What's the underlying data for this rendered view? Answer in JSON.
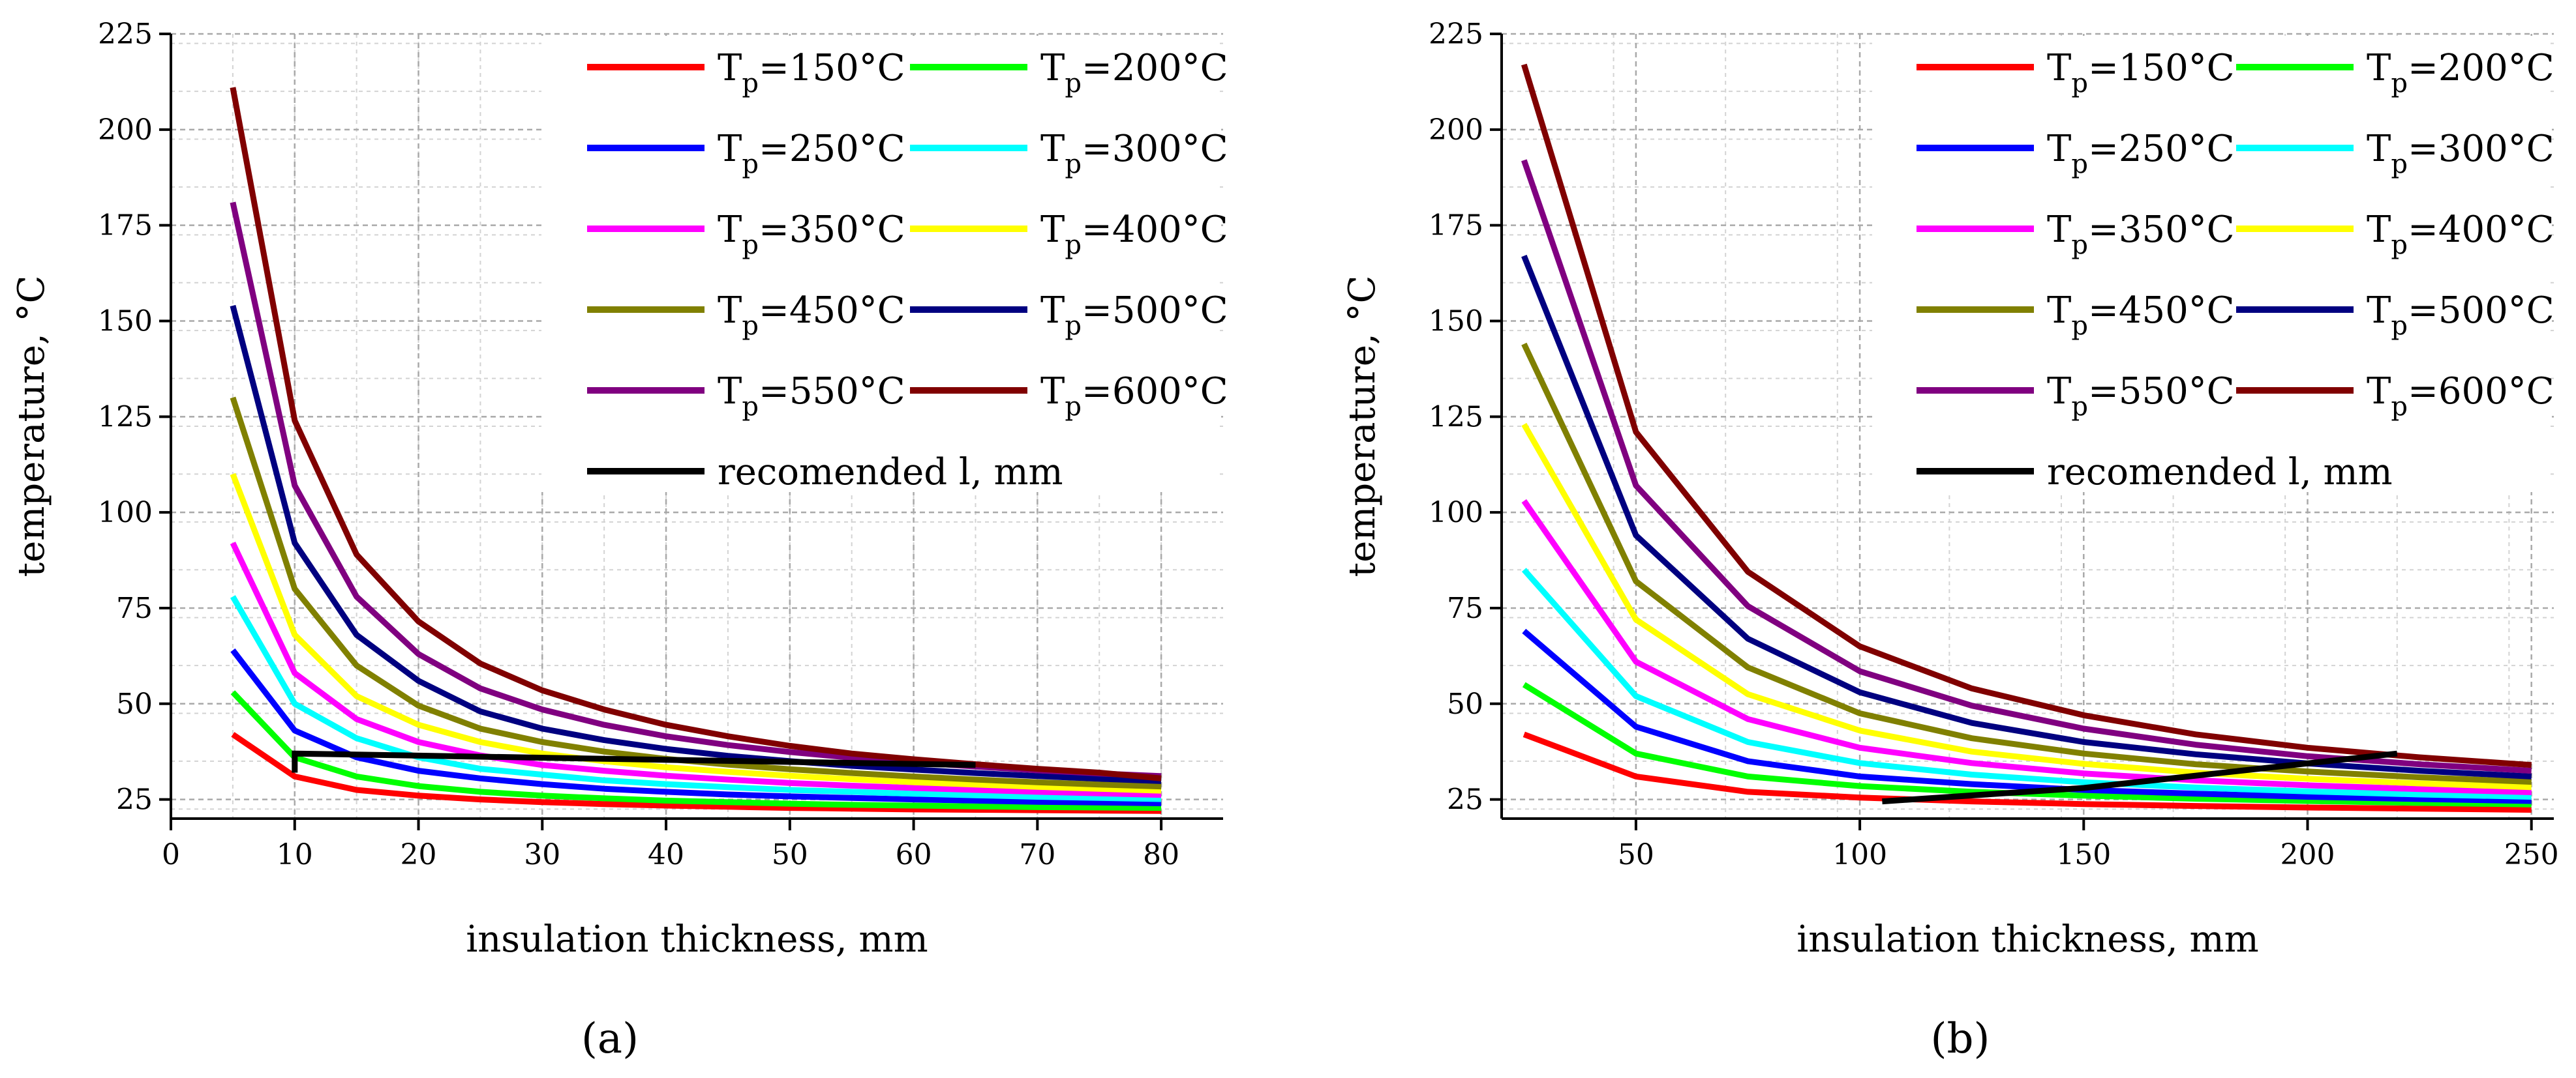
{
  "chart_data": [
    {
      "type": "line",
      "panel_label": "(a)",
      "xlabel": "insulation thickness, mm",
      "ylabel": "temperature, °C",
      "xlim": [
        0,
        85
      ],
      "ylim": [
        20,
        225
      ],
      "xticks": [
        0,
        10,
        20,
        30,
        40,
        50,
        60,
        70,
        80
      ],
      "yticks": [
        25,
        50,
        75,
        100,
        125,
        150,
        175,
        200,
        225
      ],
      "x": [
        5,
        10,
        15,
        20,
        25,
        30,
        35,
        40,
        45,
        50,
        55,
        60,
        65,
        70,
        75,
        80
      ],
      "series": [
        {
          "name": "Tp=150°C",
          "sub": "p",
          "prefix": "T",
          "suffix": "=150°C",
          "color": "#ff0000",
          "values": [
            42,
            31,
            27.5,
            26,
            25,
            24.3,
            23.8,
            23.4,
            23.1,
            22.8,
            22.6,
            22.4,
            22.3,
            22.2,
            22.1,
            22
          ]
        },
        {
          "name": "Tp=200°C",
          "sub": "p",
          "prefix": "T",
          "suffix": "=200°C",
          "color": "#00ff00",
          "values": [
            53,
            36,
            31,
            28.5,
            27,
            26,
            25.3,
            24.7,
            24.3,
            23.9,
            23.6,
            23.4,
            23.2,
            23,
            22.9,
            22.8
          ]
        },
        {
          "name": "Tp=250°C",
          "sub": "p",
          "prefix": "T",
          "suffix": "=250°C",
          "color": "#0000ff",
          "values": [
            64,
            43,
            36,
            32.5,
            30.5,
            29,
            27.8,
            27,
            26.3,
            25.8,
            25.4,
            25,
            24.7,
            24.4,
            24.2,
            24
          ]
        },
        {
          "name": "Tp=300°C",
          "sub": "p",
          "prefix": "T",
          "suffix": "=300°C",
          "color": "#00ffff",
          "values": [
            78,
            50,
            41,
            36,
            33,
            31.5,
            30,
            29,
            28.2,
            27.5,
            27,
            26.5,
            26.1,
            25.7,
            25.4,
            25.1
          ]
        },
        {
          "name": "Tp=350°C",
          "sub": "p",
          "prefix": "T",
          "suffix": "=350°C",
          "color": "#ff00ff",
          "values": [
            92,
            58,
            46,
            40,
            36.5,
            34,
            32.5,
            31.2,
            30.2,
            29.3,
            28.6,
            28,
            27.5,
            27,
            26.6,
            26.2
          ]
        },
        {
          "name": "Tp=400°C",
          "sub": "p",
          "prefix": "T",
          "suffix": "=400°C",
          "color": "#ffff00",
          "values": [
            110,
            68,
            52,
            44.5,
            40,
            37,
            35,
            33.4,
            32.2,
            31.2,
            30.3,
            29.5,
            28.9,
            28.3,
            27.8,
            27.3
          ]
        },
        {
          "name": "Tp=450°C",
          "sub": "p",
          "prefix": "T",
          "suffix": "=450°C",
          "color": "#808000",
          "values": [
            130,
            80,
            60,
            49.5,
            43.5,
            40,
            37.5,
            35.6,
            34.1,
            32.9,
            31.9,
            31,
            30.2,
            29.5,
            28.9,
            28.4
          ]
        },
        {
          "name": "Tp=500°C",
          "sub": "p",
          "prefix": "T",
          "suffix": "=500°C",
          "color": "#000080",
          "values": [
            154,
            92,
            68,
            56,
            48,
            43.5,
            40.5,
            38.2,
            36.4,
            35,
            33.8,
            32.8,
            31.9,
            31.1,
            30.4,
            29.8
          ]
        },
        {
          "name": "Tp=550°C",
          "sub": "p",
          "prefix": "T",
          "suffix": "=550°C",
          "color": "#800080",
          "values": [
            181,
            107,
            78,
            63,
            54,
            48.5,
            44.5,
            41.5,
            39.2,
            37.4,
            35.9,
            34.7,
            33.6,
            32.6,
            31.8,
            31.1
          ]
        },
        {
          "name": "Tp=600°C",
          "sub": "p",
          "prefix": "T",
          "suffix": "=600°C",
          "color": "#800000",
          "values": [
            211,
            124,
            89,
            71.5,
            60.5,
            53.5,
            48.5,
            44.5,
            41.5,
            39,
            37,
            35.5,
            34.2,
            33,
            32,
            30.5
          ]
        }
      ],
      "recommended": {
        "name": "recomended l, mm",
        "color": "#000000",
        "x": [
          10,
          10,
          65
        ],
        "y": [
          32,
          37,
          34
        ]
      }
    },
    {
      "type": "line",
      "panel_label": "(b)",
      "xlabel": "insulation thickness, mm",
      "ylabel": "temperature, °C",
      "xlim": [
        20,
        255
      ],
      "ylim": [
        20,
        225
      ],
      "xticks": [
        50,
        100,
        150,
        200,
        250
      ],
      "yticks": [
        25,
        50,
        75,
        100,
        125,
        150,
        175,
        200,
        225
      ],
      "x": [
        25,
        50,
        75,
        100,
        125,
        150,
        175,
        200,
        225,
        250
      ],
      "series": [
        {
          "name": "Tp=150°C",
          "sub": "p",
          "prefix": "T",
          "suffix": "=150°C",
          "color": "#ff0000",
          "values": [
            42,
            31,
            27,
            25.5,
            24.5,
            23.8,
            23.3,
            22.9,
            22.6,
            22.3
          ]
        },
        {
          "name": "Tp=200°C",
          "sub": "p",
          "prefix": "T",
          "suffix": "=200°C",
          "color": "#00ff00",
          "values": [
            55,
            37,
            31,
            28.5,
            27,
            26,
            25.2,
            24.6,
            24.1,
            23.7
          ]
        },
        {
          "name": "Tp=250°C",
          "sub": "p",
          "prefix": "T",
          "suffix": "=250°C",
          "color": "#0000ff",
          "values": [
            69,
            44,
            35,
            31,
            29,
            27.5,
            26.5,
            25.7,
            25.1,
            24.6
          ]
        },
        {
          "name": "Tp=300°C",
          "sub": "p",
          "prefix": "T",
          "suffix": "=300°C",
          "color": "#00ffff",
          "values": [
            85,
            52,
            40,
            34.5,
            31.5,
            29.5,
            28.1,
            27.1,
            26.3,
            25.7
          ]
        },
        {
          "name": "Tp=350°C",
          "sub": "p",
          "prefix": "T",
          "suffix": "=350°C",
          "color": "#ff00ff",
          "values": [
            103,
            61,
            46,
            38.5,
            34.5,
            31.8,
            30,
            28.7,
            27.7,
            26.9
          ]
        },
        {
          "name": "Tp=400°C",
          "sub": "p",
          "prefix": "T",
          "suffix": "=400°C",
          "color": "#ffff00",
          "values": [
            123,
            72,
            52.5,
            43,
            37.5,
            34.3,
            32,
            30.4,
            29.2,
            28.2
          ]
        },
        {
          "name": "Tp=450°C",
          "sub": "p",
          "prefix": "T",
          "suffix": "=450°C",
          "color": "#808000",
          "values": [
            144,
            82,
            59.5,
            47.5,
            41,
            37,
            34.2,
            32.3,
            30.8,
            29.6
          ]
        },
        {
          "name": "Tp=500°C",
          "sub": "p",
          "prefix": "T",
          "suffix": "=500°C",
          "color": "#000080",
          "values": [
            167,
            94,
            67,
            53,
            45,
            40,
            36.8,
            34.4,
            32.5,
            31
          ]
        },
        {
          "name": "Tp=550°C",
          "sub": "p",
          "prefix": "T",
          "suffix": "=550°C",
          "color": "#800080",
          "values": [
            192,
            107,
            75.5,
            58.5,
            49.5,
            43.5,
            39.3,
            36.3,
            34.2,
            32.5
          ]
        },
        {
          "name": "Tp=600°C",
          "sub": "p",
          "prefix": "T",
          "suffix": "=600°C",
          "color": "#800000",
          "values": [
            217,
            121,
            84.5,
            65,
            54,
            47,
            42,
            38.5,
            36,
            34
          ]
        }
      ],
      "recommended": {
        "name": "recomended l, mm",
        "color": "#000000",
        "x": [
          105,
          150,
          220
        ],
        "y": [
          24.5,
          28,
          37
        ]
      }
    }
  ]
}
